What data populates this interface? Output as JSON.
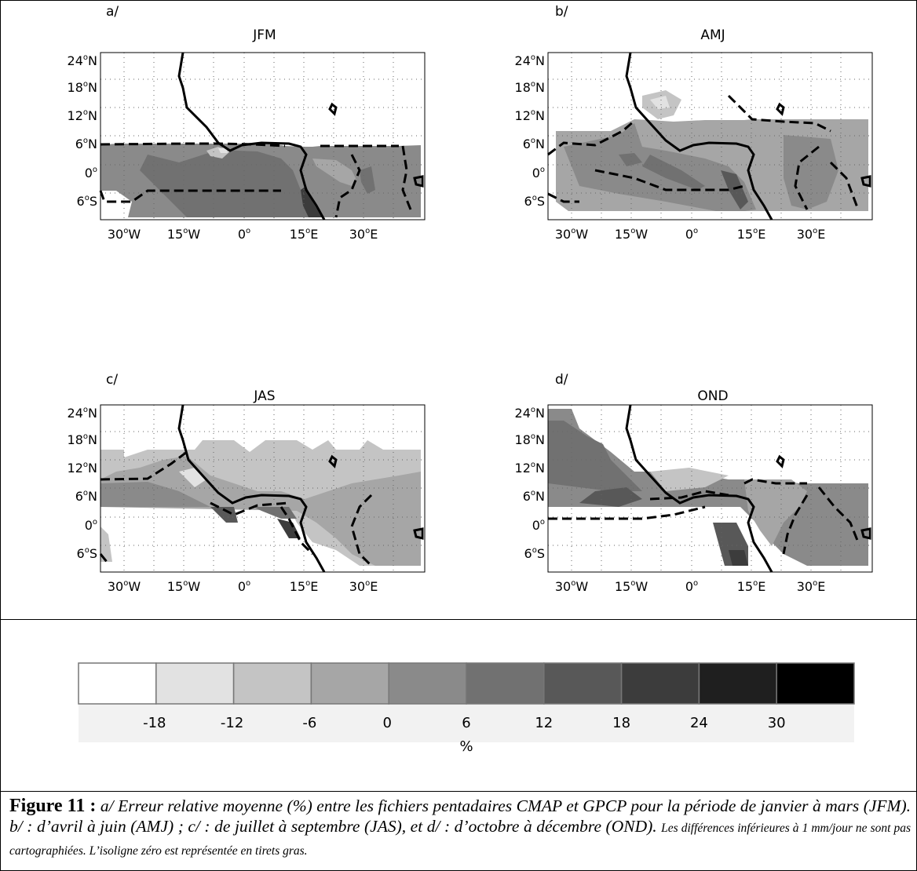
{
  "panels": [
    {
      "label": "a/",
      "title": "JFM"
    },
    {
      "label": "b/",
      "title": "AMJ"
    },
    {
      "label": "c/",
      "title": "JAS"
    },
    {
      "label": "d/",
      "title": "OND"
    }
  ],
  "lat_ticks": [
    "24",
    "18",
    "12",
    "6",
    "0",
    "6"
  ],
  "lat_suffix": [
    "N",
    "N",
    "N",
    "N",
    "",
    "S"
  ],
  "lon_ticks": [
    "30",
    "15",
    "0",
    "15",
    "30"
  ],
  "lon_suffix": [
    "W",
    "W",
    "",
    "E",
    "E"
  ],
  "degree_symbol": "o",
  "colorbar": {
    "ticks": [
      "-18",
      "-12",
      "-6",
      "0",
      "6",
      "12",
      "18",
      "24",
      "30"
    ],
    "unit": "%",
    "colors": [
      "#ffffff",
      "#e2e2e2",
      "#c4c4c4",
      "#a6a6a6",
      "#8a8a8a",
      "#717171",
      "#585858",
      "#3c3c3c",
      "#1f1f1f",
      "#000000"
    ]
  },
  "caption": {
    "label": "Figure 11 :",
    "main": "a/ Erreur relative moyenne (%) entre les fichiers pentadaires CMAP et GPCP pour la période de janvier à mars (JFM). b/ : d’avril à juin (AMJ) ; c/ : de juillet à septembre (JAS), et d/ : d’octobre à décembre (OND).",
    "note": "Les différences inférieures à 1 mm/jour ne sont pas cartographiées. L’isoligne zéro est représentée en tirets gras."
  }
}
